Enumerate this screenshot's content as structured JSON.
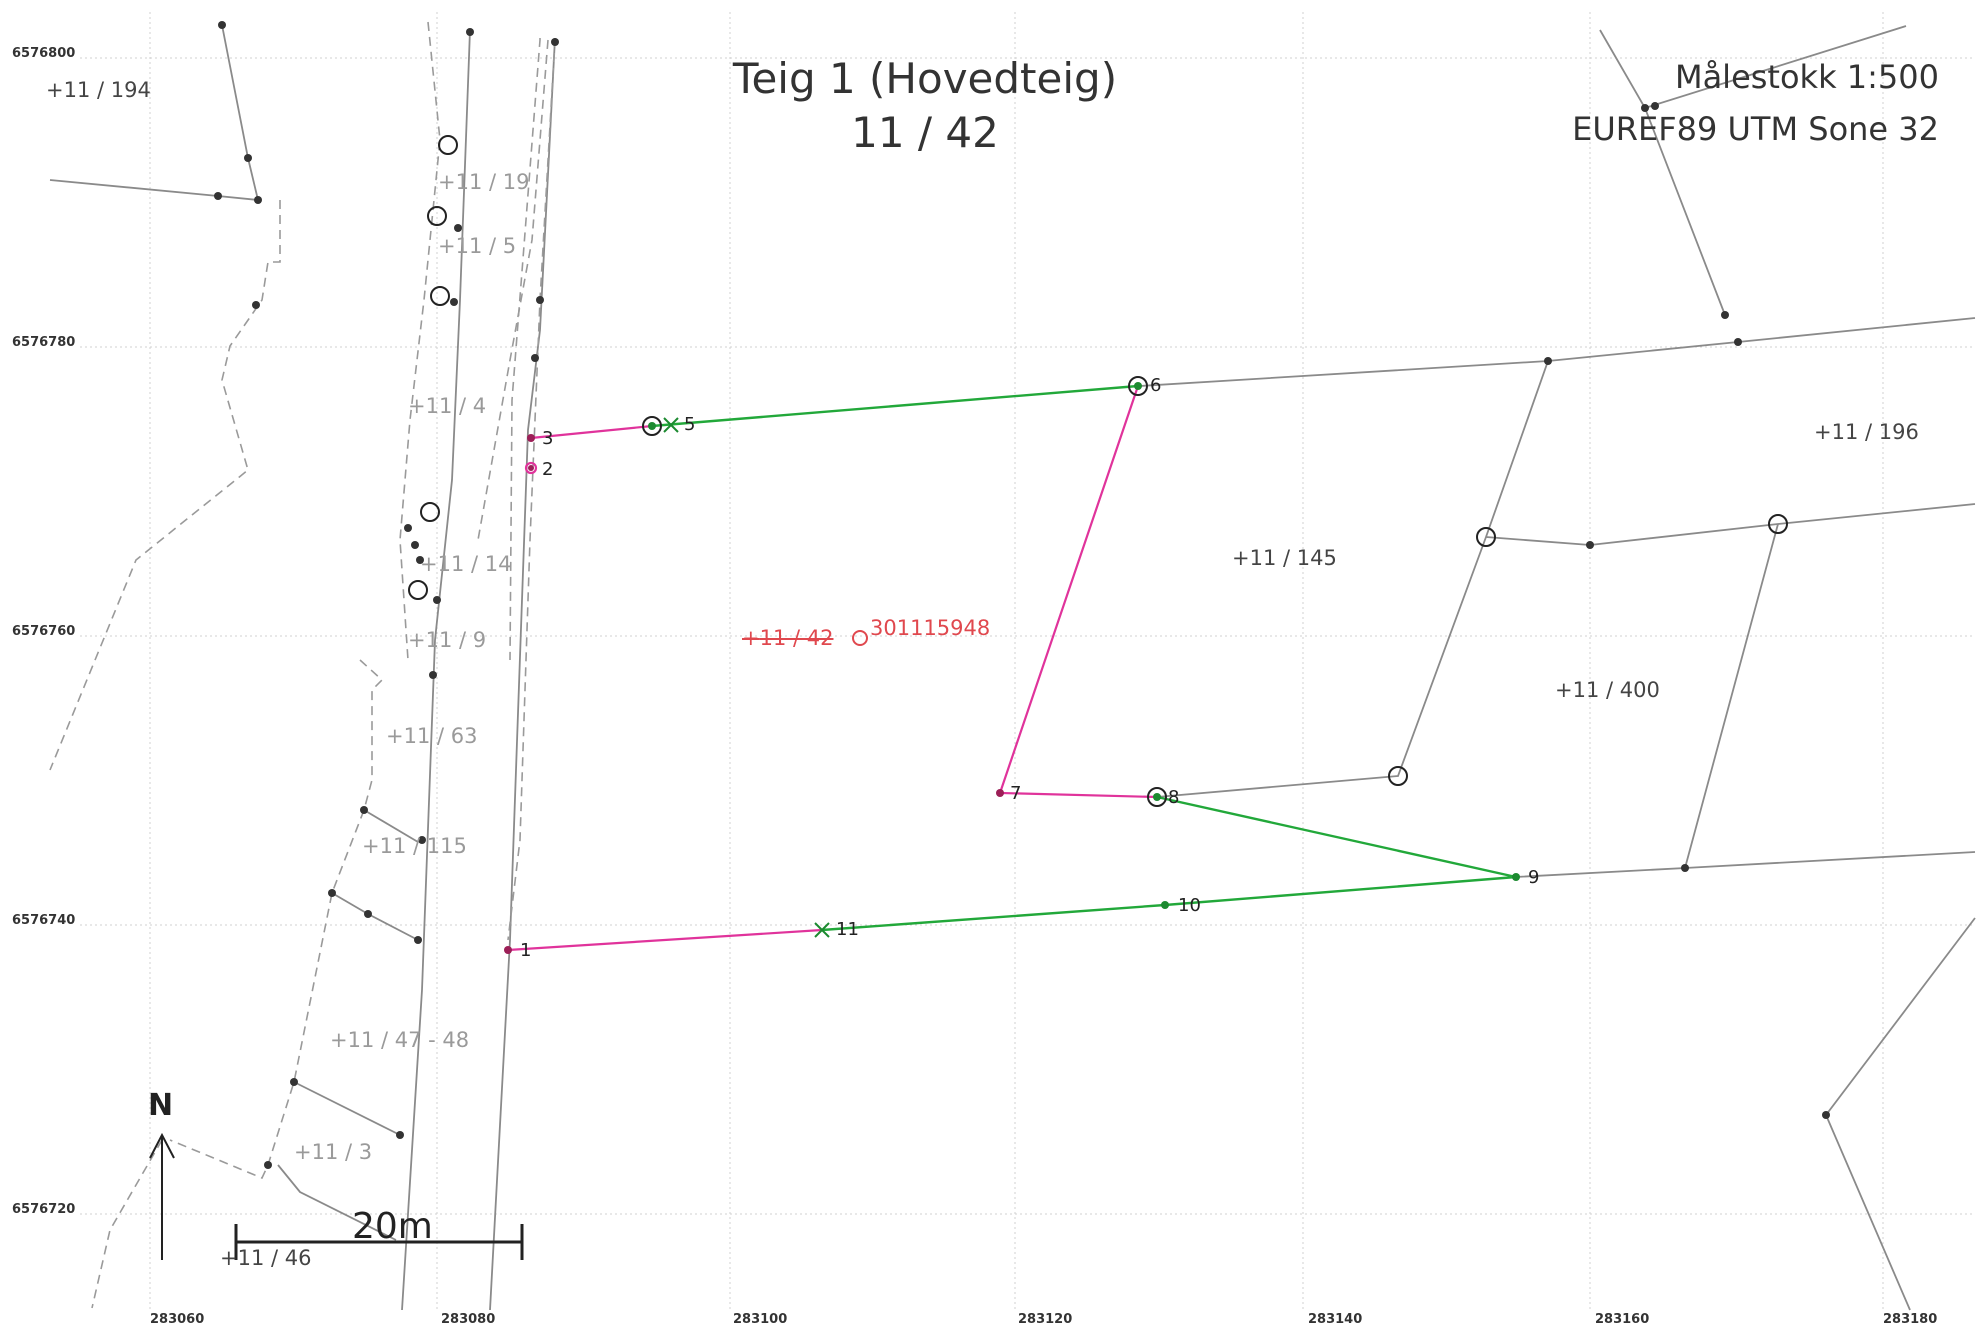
{
  "map": {
    "title": "Teig 1 (Hovedteig)",
    "parcel": "11 / 42",
    "scale": "Målestokk 1:500",
    "crs": "EUREF89 UTM Sone 32",
    "north_label": "N",
    "scale_bar_label": "20m"
  },
  "axes": {
    "y_ticks": [
      "6576800",
      "6576780",
      "6576760",
      "6576740",
      "6576720"
    ],
    "x_ticks": [
      "283060",
      "283080",
      "283100",
      "283120",
      "283140",
      "283160",
      "283180"
    ]
  },
  "parcel_labels": [
    {
      "id": "p-11-194",
      "text": "11 / 194",
      "style": "dark"
    },
    {
      "id": "p-11-19",
      "text": "11 / 19",
      "style": "grey"
    },
    {
      "id": "p-11-5",
      "text": "11 / 5",
      "style": "grey"
    },
    {
      "id": "p-11-4",
      "text": "11 / 4",
      "style": "grey"
    },
    {
      "id": "p-11-14",
      "text": "11 / 14",
      "style": "grey"
    },
    {
      "id": "p-11-9",
      "text": "11 / 9",
      "style": "grey"
    },
    {
      "id": "p-11-63",
      "text": "11 / 63",
      "style": "grey"
    },
    {
      "id": "p-11-115",
      "text": "11 / 115",
      "style": "grey"
    },
    {
      "id": "p-11-47-48",
      "text": "11 / 47 - 48",
      "style": "grey"
    },
    {
      "id": "p-11-3",
      "text": "11 / 3",
      "style": "grey"
    },
    {
      "id": "p-11-46",
      "text": "11 / 46",
      "style": "dark"
    },
    {
      "id": "p-11-145",
      "text": "11 / 145",
      "style": "dark"
    },
    {
      "id": "p-11-400",
      "text": "11 / 400",
      "style": "dark"
    },
    {
      "id": "p-11-196",
      "text": "11 / 196",
      "style": "dark"
    }
  ],
  "main_parcel_label": "11 / 42",
  "matrikkel_id": "301115948",
  "boundary_points": [
    "1",
    "2",
    "3",
    "5",
    "6",
    "7",
    "8",
    "9",
    "10",
    "11"
  ],
  "colors": {
    "boundary_measured": "#22a83a",
    "boundary_unmeasured": "#e0339b",
    "neighbor_line": "#888888",
    "grid": "#d8d8d8",
    "main_label": "#e0484e"
  }
}
